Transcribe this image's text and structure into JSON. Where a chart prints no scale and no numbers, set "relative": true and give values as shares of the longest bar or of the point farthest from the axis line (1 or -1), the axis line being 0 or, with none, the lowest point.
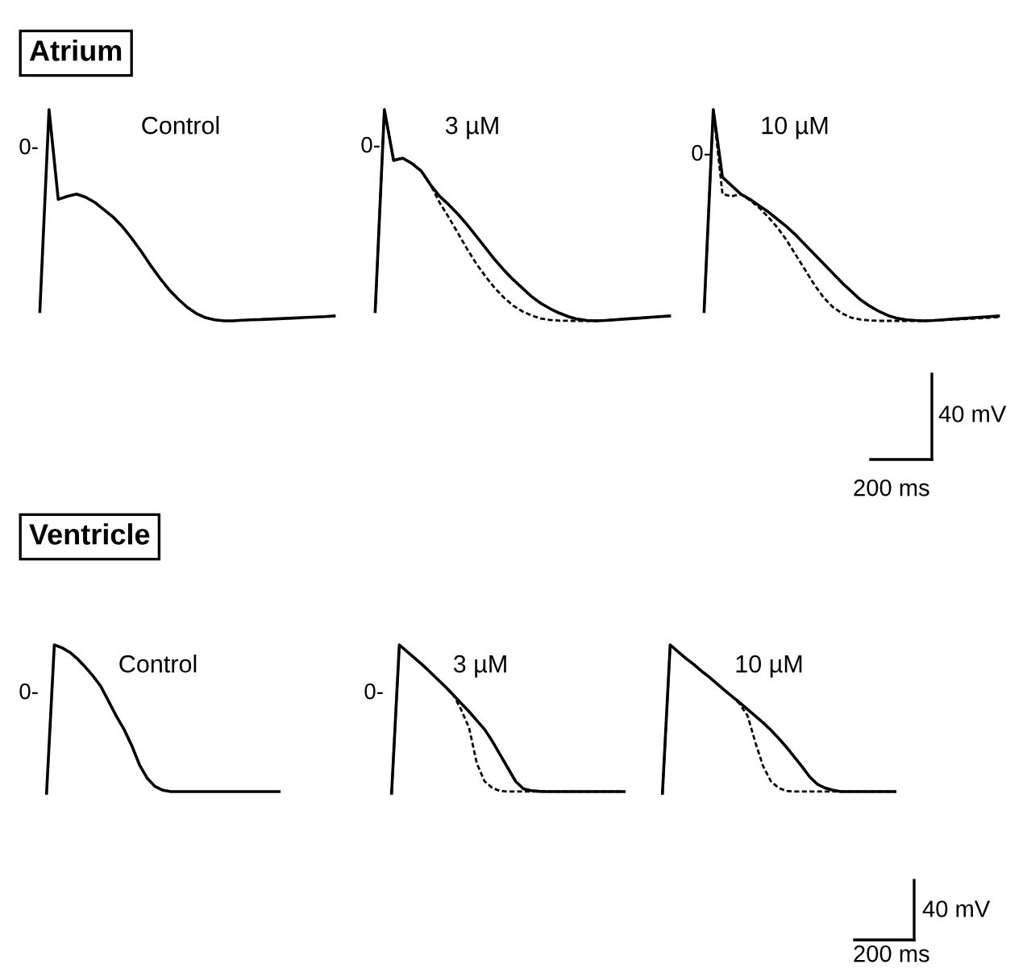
{
  "chart_data": [
    {
      "type": "line",
      "title": "Control",
      "relative": true,
      "annotations": [
        "Atrium",
        "0-"
      ],
      "categories": [
        null,
        null,
        null,
        null,
        null,
        null,
        null,
        null,
        null,
        null,
        null,
        null,
        null,
        null,
        null,
        null,
        null,
        null,
        null,
        null,
        null,
        null,
        null,
        null,
        null,
        null,
        null,
        null,
        null,
        null,
        null,
        null,
        null
      ],
      "series": [
        {
          "color": "#000000",
          "line_style": "solid",
          "values": [
            0.044,
            1.0,
            0.575,
            0.59,
            0.6,
            0.585,
            0.56,
            0.525,
            0.49,
            0.445,
            0.39,
            0.33,
            0.265,
            0.205,
            0.15,
            0.105,
            0.065,
            0.035,
            0.015,
            0.005,
            0.0,
            0.0,
            0.003,
            0.005,
            0.006,
            0.008,
            0.01,
            0.012,
            0.014,
            0.016,
            0.018,
            0.02,
            0.023
          ]
        }
      ]
    },
    {
      "type": "line",
      "title": "3 µM",
      "relative": true,
      "annotations": [
        "0-"
      ],
      "categories": [
        null,
        null,
        null,
        null,
        null,
        null,
        null,
        null,
        null,
        null,
        null,
        null,
        null,
        null,
        null,
        null,
        null,
        null,
        null,
        null,
        null,
        null,
        null,
        null,
        null,
        null,
        null,
        null,
        null,
        null,
        null,
        null,
        null
      ],
      "series": [
        {
          "color": "#000000",
          "line_style": "solid",
          "values": [
            0.044,
            1.0,
            0.76,
            0.77,
            0.745,
            0.71,
            0.645,
            0.59,
            0.55,
            0.505,
            0.455,
            0.4,
            0.345,
            0.29,
            0.24,
            0.195,
            0.155,
            0.115,
            0.083,
            0.058,
            0.037,
            0.02,
            0.008,
            0.002,
            0.0,
            0.002,
            0.005,
            0.008,
            0.011,
            0.014,
            0.017,
            0.02,
            0.023
          ]
        },
        {
          "color": "#000000",
          "line_style": "dashed",
          "values": [
            0.044,
            1.0,
            0.76,
            0.77,
            0.745,
            0.71,
            0.645,
            0.56,
            0.49,
            0.415,
            0.34,
            0.27,
            0.21,
            0.155,
            0.11,
            0.072,
            0.045,
            0.025,
            0.011,
            0.004,
            0.001,
            0.0,
            0.0,
            0.0,
            0.0,
            0.002,
            0.005,
            0.008,
            0.011,
            0.014,
            0.017,
            0.02,
            0.023
          ]
        }
      ]
    },
    {
      "type": "line",
      "title": "10 µM",
      "relative": true,
      "annotations": [
        "0-",
        "40 mV",
        "200 ms"
      ],
      "categories": [
        null,
        null,
        null,
        null,
        null,
        null,
        null,
        null,
        null,
        null,
        null,
        null,
        null,
        null,
        null,
        null,
        null,
        null,
        null,
        null,
        null,
        null,
        null,
        null,
        null,
        null,
        null,
        null,
        null,
        null,
        null,
        null,
        null
      ],
      "series": [
        {
          "color": "#000000",
          "line_style": "solid",
          "values": [
            0.044,
            1.0,
            0.68,
            0.64,
            0.6,
            0.575,
            0.545,
            0.515,
            0.48,
            0.445,
            0.405,
            0.36,
            0.315,
            0.27,
            0.225,
            0.18,
            0.14,
            0.1,
            0.07,
            0.045,
            0.025,
            0.012,
            0.005,
            0.002,
            0.0,
            0.002,
            0.005,
            0.008,
            0.011,
            0.014,
            0.017,
            0.02,
            0.023
          ]
        },
        {
          "color": "#000000",
          "line_style": "dashed",
          "values": [
            0.044,
            1.0,
            0.6,
            0.59,
            0.6,
            0.57,
            0.535,
            0.49,
            0.44,
            0.38,
            0.31,
            0.24,
            0.17,
            0.11,
            0.065,
            0.035,
            0.015,
            0.006,
            0.002,
            0.0,
            0.0,
            0.0,
            0.0,
            0.0,
            0.0,
            0.002,
            0.004,
            0.006,
            0.008,
            0.01,
            0.012,
            0.015,
            0.018
          ]
        }
      ]
    },
    {
      "type": "line",
      "title": "Control",
      "relative": true,
      "annotations": [
        "Ventricle",
        "0-"
      ],
      "categories": [
        null,
        null,
        null,
        null,
        null,
        null,
        null,
        null,
        null,
        null,
        null,
        null,
        null,
        null,
        null,
        null,
        null,
        null,
        null,
        null,
        null,
        null,
        null,
        null,
        null,
        null,
        null,
        null,
        null,
        null,
        null
      ],
      "series": [
        {
          "color": "#000000",
          "line_style": "solid",
          "values": [
            0.0,
            1.0,
            0.98,
            0.95,
            0.905,
            0.85,
            0.79,
            0.72,
            0.62,
            0.52,
            0.43,
            0.32,
            0.19,
            0.1,
            0.045,
            0.02,
            0.011,
            0.011,
            0.011,
            0.011,
            0.011,
            0.011,
            0.011,
            0.011,
            0.011,
            0.011,
            0.011,
            0.011,
            0.011,
            0.011,
            0.011
          ]
        }
      ]
    },
    {
      "type": "line",
      "title": "3 µM",
      "relative": true,
      "annotations": [
        "0-"
      ],
      "categories": [
        null,
        null,
        null,
        null,
        null,
        null,
        null,
        null,
        null,
        null,
        null,
        null,
        null,
        null,
        null,
        null,
        null,
        null,
        null,
        null,
        null,
        null,
        null,
        null,
        null,
        null,
        null,
        null,
        null,
        null,
        null
      ],
      "series": [
        {
          "color": "#000000",
          "line_style": "solid",
          "values": [
            0.0,
            1.0,
            0.955,
            0.91,
            0.865,
            0.815,
            0.765,
            0.715,
            0.66,
            0.605,
            0.55,
            0.49,
            0.43,
            0.35,
            0.26,
            0.17,
            0.08,
            0.03,
            0.018,
            0.013,
            0.011,
            0.011,
            0.011,
            0.011,
            0.011,
            0.011,
            0.011,
            0.011,
            0.011,
            0.011,
            0.011
          ]
        },
        {
          "color": "#000000",
          "line_style": "dashed",
          "values": [
            0.0,
            1.0,
            0.955,
            0.91,
            0.865,
            0.815,
            0.765,
            0.715,
            0.66,
            0.56,
            0.44,
            0.2,
            0.08,
            0.035,
            0.015,
            0.011,
            0.011,
            0.011,
            0.011,
            0.011,
            0.011,
            0.011,
            0.011,
            0.011,
            0.011,
            0.011,
            0.011,
            0.011,
            0.011,
            0.011,
            0.011
          ]
        }
      ]
    },
    {
      "type": "line",
      "title": "10 µM",
      "relative": true,
      "annotations": [
        "40 mV",
        "200 ms"
      ],
      "categories": [
        null,
        null,
        null,
        null,
        null,
        null,
        null,
        null,
        null,
        null,
        null,
        null,
        null,
        null,
        null,
        null,
        null,
        null,
        null,
        null,
        null,
        null,
        null,
        null,
        null,
        null,
        null,
        null,
        null,
        null,
        null
      ],
      "series": [
        {
          "color": "#000000",
          "line_style": "solid",
          "values": [
            0.0,
            1.0,
            0.955,
            0.91,
            0.87,
            0.825,
            0.785,
            0.74,
            0.695,
            0.652,
            0.61,
            0.565,
            0.52,
            0.475,
            0.425,
            0.37,
            0.31,
            0.245,
            0.18,
            0.11,
            0.06,
            0.035,
            0.02,
            0.011,
            0.011,
            0.011,
            0.011,
            0.011,
            0.011,
            0.011,
            0.011
          ]
        },
        {
          "color": "#000000",
          "line_style": "dashed",
          "values": [
            0.0,
            1.0,
            0.955,
            0.91,
            0.87,
            0.825,
            0.785,
            0.74,
            0.695,
            0.652,
            0.6,
            0.52,
            0.34,
            0.18,
            0.08,
            0.035,
            0.015,
            0.011,
            0.011,
            0.011,
            0.011,
            0.011,
            0.011,
            0.011,
            0.011,
            0.011,
            0.011,
            0.011,
            0.011,
            0.011,
            0.011
          ]
        }
      ]
    }
  ]
}
